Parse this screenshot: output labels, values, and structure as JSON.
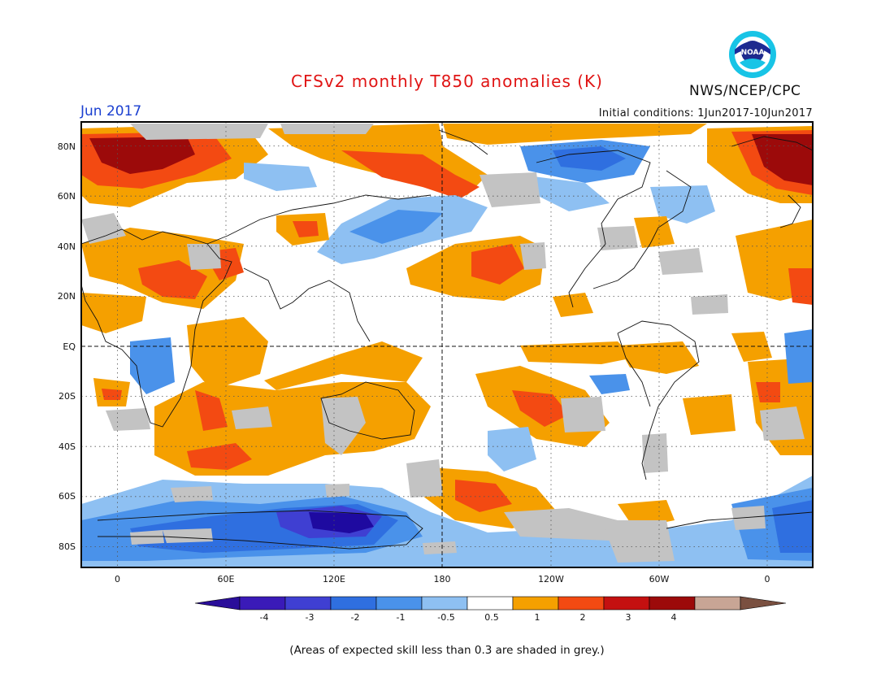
{
  "header": {
    "title": "CFSv2 monthly T850 anomalies (K)",
    "month": "Jun 2017",
    "initial_conditions": "Initial conditions: 1Jun2017-10Jun2017",
    "agency": "NWS/NCEP/CPC",
    "logo_text": "NOAA"
  },
  "map": {
    "lat_labels": [
      "80N",
      "60N",
      "40N",
      "20N",
      "EQ",
      "20S",
      "40S",
      "60S",
      "80S"
    ],
    "lon_labels": [
      "0",
      "60E",
      "120E",
      "180",
      "120W",
      "60W",
      "0"
    ],
    "grid": "dotted",
    "center_lines": "dashed equator and 180 meridian",
    "colors": {
      "blue_4": "#1e0aa0",
      "blue_3": "#3f3fd2",
      "blue_2": "#2f6fe0",
      "blue_1": "#4a92ea",
      "blue_05": "#8ec0f2",
      "white": "#ffffff",
      "orange_05": "#f5a000",
      "red_1": "#f34a12",
      "red_2": "#c41010",
      "darkred_3": "#9c0a0a",
      "tan_4": "#c8a595",
      "brown": "#7a5040",
      "grey": "#c3c3c3"
    }
  },
  "colorbar": {
    "labels": [
      "-4",
      "-3",
      "-2",
      "-1",
      "-0.5",
      "0.5",
      "1",
      "2",
      "3",
      "4"
    ],
    "colors": [
      "#3a1ab8",
      "#3f3fd2",
      "#2f6fe0",
      "#4a92ea",
      "#8ec0f2",
      "#ffffff",
      "#f5a000",
      "#f34a12",
      "#c41010",
      "#9c0a0a",
      "#c8a595"
    ],
    "left_arrow_color": "#2a0e9a",
    "right_arrow_color": "#7a5040"
  },
  "footnote": "(Areas of expected skill less than 0.3 are shaded in grey.)"
}
